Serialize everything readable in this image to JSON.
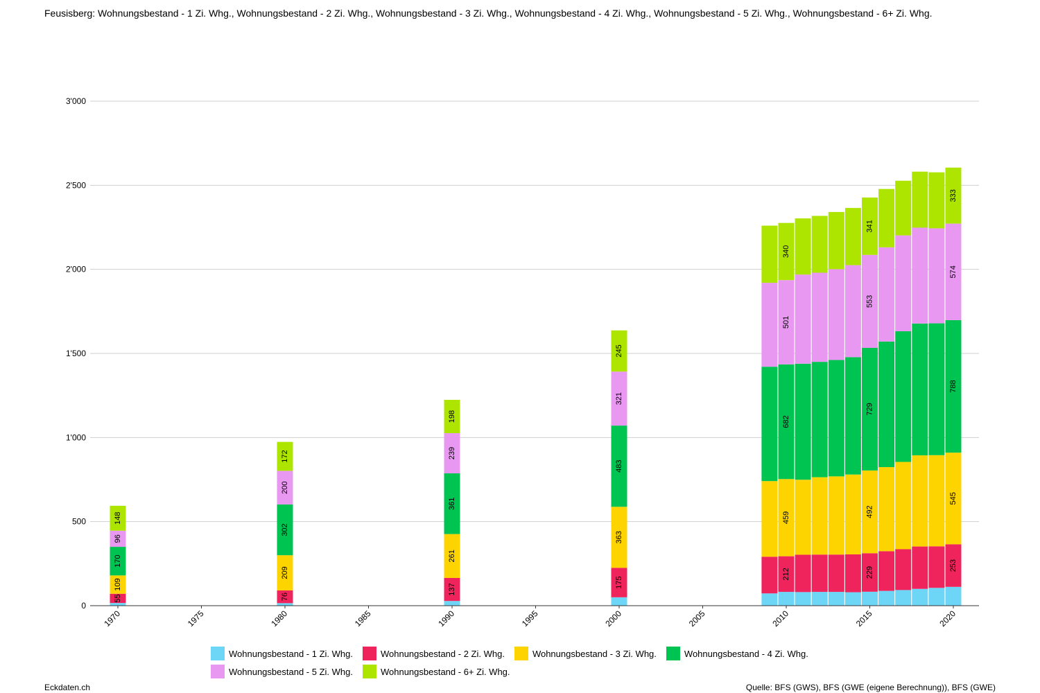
{
  "page": {
    "title": "Feusisberg: Wohnungsbestand - 1 Zi. Whg., Wohnungsbestand - 2 Zi. Whg., Wohnungsbestand - 3 Zi. Whg., Wohnungsbestand - 4 Zi. Whg., Wohnungsbestand - 5 Zi. Whg., Wohnungsbestand - 6+ Zi. Whg.",
    "brand": "Eckdaten.ch",
    "source": "Quelle: BFS (GWS), BFS (GWE (eigene Berechnung)), BFS (GWE)"
  },
  "chart_data": {
    "type": "bar",
    "stacked": true,
    "title": "Feusisberg: Wohnungsbestand - 1 Zi. Whg., Wohnungsbestand - 2 Zi. Whg., Wohnungsbestand - 3 Zi. Whg., Wohnungsbestand - 4 Zi. Whg., Wohnungsbestand - 5 Zi. Whg., Wohnungsbestand - 6+ Zi. Whg.",
    "xlabel": "",
    "ylabel": "",
    "xlim": [
      1970,
      2020
    ],
    "ylim": [
      0,
      3000
    ],
    "x_ticks": [
      "1970",
      "1975",
      "1980",
      "1985",
      "1990",
      "1995",
      "2000",
      "2005",
      "2010",
      "2015",
      "2020"
    ],
    "y_ticks": [
      {
        "value": 0,
        "label": "0"
      },
      {
        "value": 500,
        "label": "500"
      },
      {
        "value": 1000,
        "label": "1'000"
      },
      {
        "value": 1500,
        "label": "1'500"
      },
      {
        "value": 2000,
        "label": "2'000"
      },
      {
        "value": 2500,
        "label": "2'500"
      },
      {
        "value": 3000,
        "label": "3'000"
      }
    ],
    "grid": true,
    "legend_position": "bottom",
    "x": [
      1970,
      1980,
      1990,
      2000,
      2009,
      2010,
      2011,
      2012,
      2013,
      2014,
      2015,
      2016,
      2017,
      2018,
      2019,
      2020
    ],
    "series": [
      {
        "name": "Wohnungsbestand - 1 Zi. Whg.",
        "color": "#6dd6f7",
        "values": [
          16,
          15,
          28,
          50,
          73,
          82,
          81,
          82,
          82,
          80,
          83,
          88,
          93,
          100,
          106,
          112
        ]
      },
      {
        "name": "Wohnungsbestand - 2 Zi. Whg.",
        "color": "#f0245c",
        "values": [
          55,
          76,
          137,
          175,
          218,
          212,
          222,
          222,
          222,
          225,
          229,
          236,
          243,
          252,
          247,
          253
        ]
      },
      {
        "name": "Wohnungsbestand - 3 Zi. Whg.",
        "color": "#fdd400",
        "values": [
          109,
          209,
          261,
          363,
          450,
          459,
          446,
          460,
          465,
          475,
          492,
          500,
          519,
          542,
          542,
          545
        ]
      },
      {
        "name": "Wohnungsbestand - 4 Zi. Whg.",
        "color": "#00c452",
        "values": [
          170,
          302,
          361,
          483,
          680,
          682,
          690,
          686,
          692,
          698,
          729,
          747,
          777,
          784,
          784,
          788
        ]
      },
      {
        "name": "Wohnungsbestand - 5 Zi. Whg.",
        "color": "#e998f2",
        "values": [
          96,
          200,
          239,
          321,
          499,
          501,
          530,
          530,
          540,
          547,
          553,
          560,
          570,
          570,
          565,
          574
        ]
      },
      {
        "name": "Wohnungsbestand - 6+ Zi. Whg.",
        "color": "#aee500",
        "values": [
          148,
          172,
          198,
          245,
          340,
          340,
          334,
          338,
          340,
          340,
          341,
          347,
          325,
          333,
          333,
          333
        ]
      }
    ],
    "labeled_years": [
      1970,
      1980,
      1990,
      2000,
      2010,
      2015,
      2020
    ],
    "value_labels_by_series": [
      [],
      [
        55,
        76,
        137,
        175,
        212,
        229,
        253
      ],
      [
        109,
        209,
        261,
        363,
        459,
        492,
        545
      ],
      [
        170,
        302,
        361,
        483,
        682,
        729,
        788
      ],
      [
        96,
        200,
        239,
        321,
        501,
        553,
        574
      ],
      [
        148,
        172,
        198,
        245,
        340,
        341,
        333
      ]
    ]
  }
}
